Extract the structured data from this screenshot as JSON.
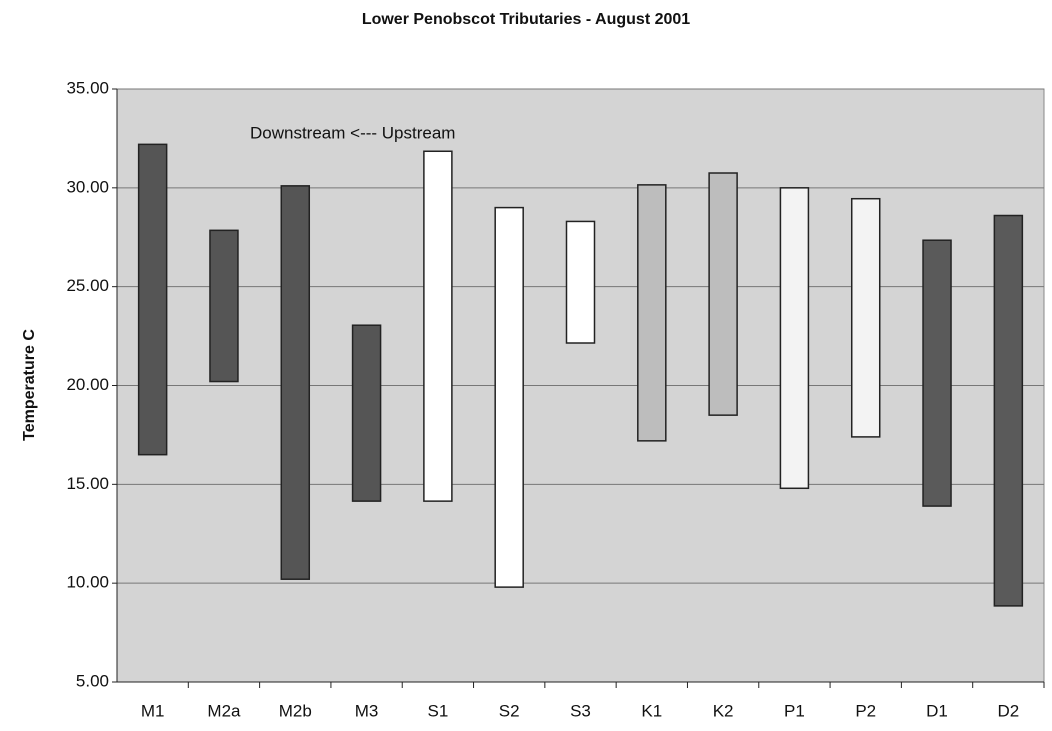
{
  "chart_data": {
    "type": "floating_bar",
    "title": "Lower Penobscot Tributaries - August 2001",
    "y_label": "Temperature C",
    "annotation": "Downstream <--- Upstream",
    "categories": [
      "M1",
      "M2a",
      "M2b",
      "M3",
      "S1",
      "S2",
      "S3",
      "K1",
      "K2",
      "P1",
      "P2",
      "D1",
      "D2"
    ],
    "low": [
      16.5,
      20.2,
      10.2,
      14.15,
      14.15,
      9.8,
      22.15,
      17.2,
      18.5,
      14.8,
      17.4,
      13.9,
      8.85
    ],
    "high": [
      32.2,
      27.85,
      30.1,
      23.05,
      31.85,
      29.0,
      28.3,
      30.15,
      30.75,
      30.0,
      29.45,
      27.35,
      28.6
    ],
    "colors": [
      "#555555",
      "#555555",
      "#555555",
      "#555555",
      "#ffffff",
      "#ffffff",
      "#ffffff",
      "#bdbdbd",
      "#bdbdbd",
      "#f3f3f3",
      "#f3f3f3",
      "#5a5a5a",
      "#5a5a5a"
    ],
    "ylim": [
      5,
      35
    ],
    "yticks": [
      {
        "value": 5,
        "label": "5.00"
      },
      {
        "value": 10,
        "label": "10.00"
      },
      {
        "value": 15,
        "label": "15.00"
      },
      {
        "value": 20,
        "label": "20.00"
      },
      {
        "value": 25,
        "label": "25.00"
      },
      {
        "value": 30,
        "label": "30.00"
      },
      {
        "value": 35,
        "label": "35.00"
      }
    ],
    "grid": true
  }
}
